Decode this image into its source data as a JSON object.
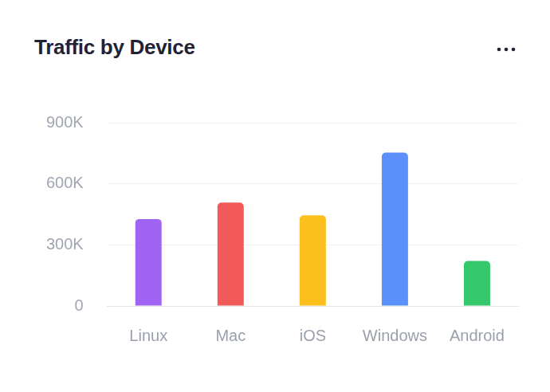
{
  "chart_data": {
    "type": "bar",
    "title": "Traffic by Device",
    "categories": [
      "Linux",
      "Mac",
      "iOS",
      "Windows",
      "Android"
    ],
    "values": [
      427000,
      508000,
      445000,
      753000,
      221000
    ],
    "colors": [
      "#a064f3",
      "#f25a5a",
      "#fdbf1e",
      "#5b8ff9",
      "#34c76b"
    ],
    "ylim": [
      0,
      900000
    ],
    "yticks": [
      0,
      {
        "value": 300000,
        "label": "300K"
      },
      {
        "value": 600000,
        "label": "600K"
      },
      {
        "value": 900000,
        "label": "900K"
      }
    ],
    "grid": true
  }
}
